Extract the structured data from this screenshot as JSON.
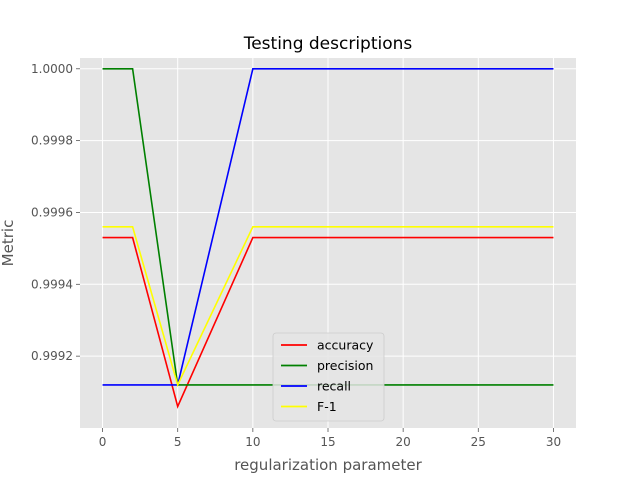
{
  "chart_data": {
    "type": "line",
    "title": "Testing descriptions",
    "xlabel": "regularization parameter",
    "ylabel": "Metric",
    "xlim": [
      -1.5,
      31.5
    ],
    "ylim": [
      0.999,
      1.00003
    ],
    "xticks": [
      0,
      5,
      10,
      15,
      20,
      25,
      30
    ],
    "yticks": [
      0.9992,
      0.9994,
      0.9996,
      0.9998,
      1.0
    ],
    "ytick_labels": [
      "0.9992",
      "0.9994",
      "0.9996",
      "0.9998",
      "1.0000"
    ],
    "grid": true,
    "legend_position": "lower center",
    "x": [
      0,
      2,
      5,
      10,
      30
    ],
    "series": [
      {
        "name": "accuracy",
        "color": "#ff0000",
        "values": [
          0.99953,
          0.99953,
          0.99906,
          0.99953,
          0.99953
        ]
      },
      {
        "name": "precision",
        "color": "#008000",
        "values": [
          1.0,
          1.0,
          0.99912,
          0.99912,
          0.99912
        ]
      },
      {
        "name": "recall",
        "color": "#0000ff",
        "values": [
          0.99912,
          0.99912,
          0.99912,
          1.0,
          1.0
        ]
      },
      {
        "name": "F-1",
        "color": "#ffff00",
        "values": [
          0.99956,
          0.99956,
          0.99912,
          0.99956,
          0.99956
        ]
      }
    ]
  }
}
